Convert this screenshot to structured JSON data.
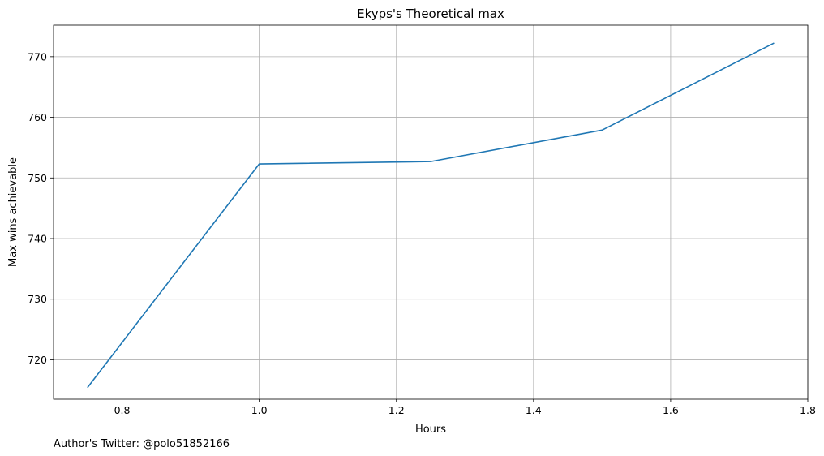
{
  "chart_data": {
    "type": "line",
    "title": "Ekyps's Theoretical max",
    "xlabel": "Hours",
    "ylabel": "Max wins achievable",
    "xlim": [
      0.7,
      1.8
    ],
    "ylim": [
      713.5,
      775.2
    ],
    "xticks": [
      0.8,
      1.0,
      1.2,
      1.4,
      1.6,
      1.8
    ],
    "xtick_labels": [
      "0.8",
      "1.0",
      "1.2",
      "1.4",
      "1.6",
      "1.8"
    ],
    "yticks": [
      720,
      730,
      740,
      750,
      760,
      770
    ],
    "ytick_labels": [
      "720",
      "730",
      "740",
      "750",
      "760",
      "770"
    ],
    "grid": true,
    "legend": "none",
    "series": [
      {
        "color": "#1f77b4",
        "x": [
          0.75,
          1.0,
          1.25,
          1.5,
          1.75
        ],
        "y": [
          715.5,
          752.3,
          752.7,
          757.9,
          772.2
        ]
      }
    ]
  },
  "footnote": "Author's Twitter: @polo51852166"
}
